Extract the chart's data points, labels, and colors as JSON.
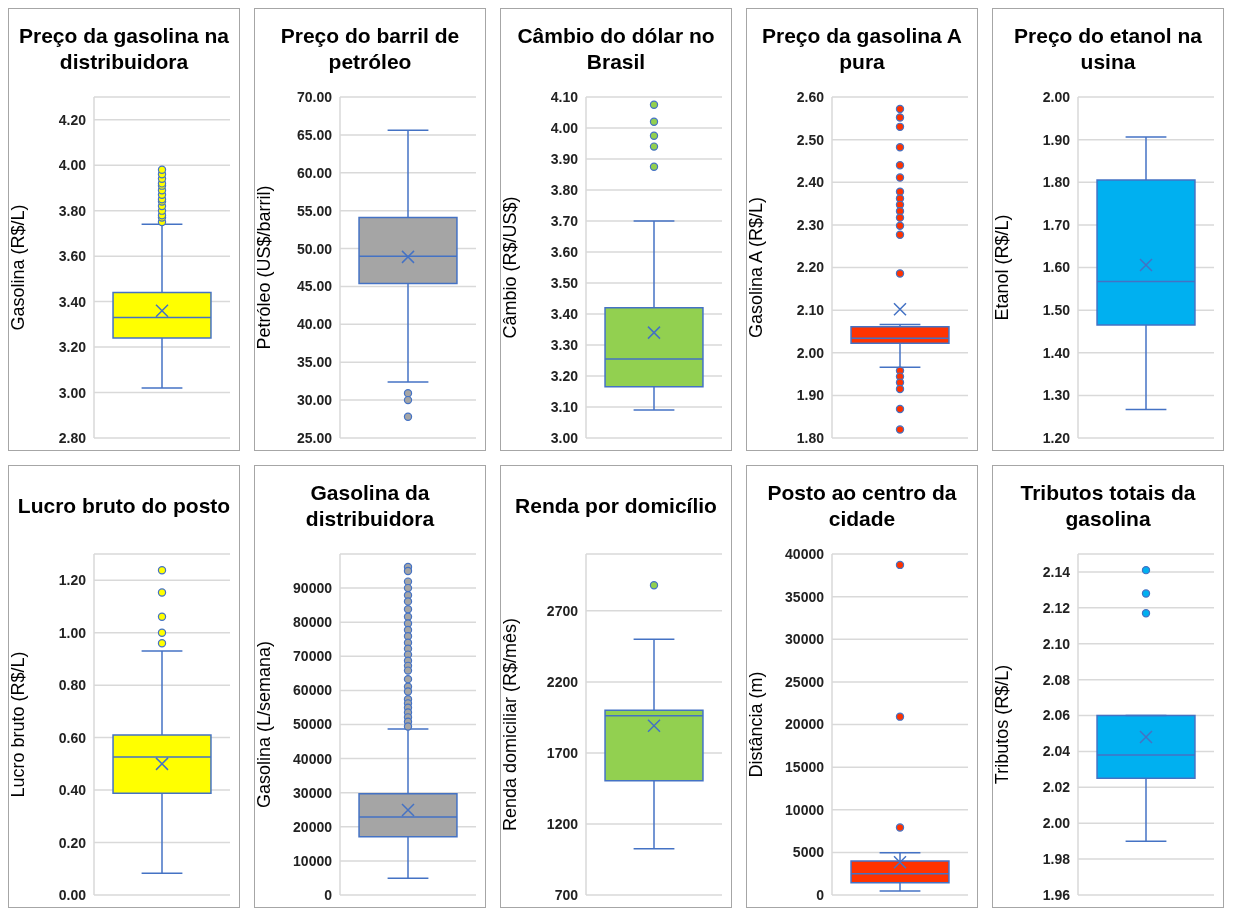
{
  "chart_data": [
    {
      "type": "box",
      "title": "Preço da gasolina na distribuidora",
      "ylabel": "Gasolina (R$/L)",
      "categories": [
        null
      ],
      "grid": "y",
      "ylim": [
        2.8,
        4.3
      ],
      "yticks": [
        {
          "value": 2.8,
          "label": "2.80"
        },
        {
          "value": 3.0,
          "label": "3.00"
        },
        {
          "value": 3.2,
          "label": "3.20"
        },
        {
          "value": 3.4,
          "label": "3.40"
        },
        {
          "value": 3.6,
          "label": "3.60"
        },
        {
          "value": 3.8,
          "label": "3.80"
        },
        {
          "value": 4.0,
          "label": "4.00"
        },
        {
          "value": 4.2,
          "label": "4.20"
        }
      ],
      "series": [
        {
          "color": "#ffff00",
          "boxes": [
            {
              "low": 3.02,
              "q1": 3.24,
              "median": 3.33,
              "q3": 3.44,
              "high": 3.74,
              "mean": 3.36,
              "outliers": [
                3.75,
                3.77,
                3.78,
                3.8,
                3.82,
                3.84,
                3.85,
                3.87,
                3.89,
                3.91,
                3.92,
                3.94,
                3.96,
                3.98
              ]
            }
          ]
        }
      ]
    },
    {
      "type": "box",
      "title": "Preço do barril de petróleo",
      "ylabel": "Petróleo (US$/barril)",
      "categories": [
        null
      ],
      "grid": "y",
      "ylim": [
        25,
        70
      ],
      "yticks": [
        {
          "value": 25,
          "label": "25.00"
        },
        {
          "value": 30,
          "label": "30.00"
        },
        {
          "value": 35,
          "label": "35.00"
        },
        {
          "value": 40,
          "label": "40.00"
        },
        {
          "value": 45,
          "label": "45.00"
        },
        {
          "value": 50,
          "label": "50.00"
        },
        {
          "value": 55,
          "label": "55.00"
        },
        {
          "value": 60,
          "label": "60.00"
        },
        {
          "value": 65,
          "label": "65.00"
        },
        {
          "value": 70,
          "label": "70.00"
        }
      ],
      "series": [
        {
          "color": "#a5a5a5",
          "boxes": [
            {
              "low": 32.4,
              "q1": 45.4,
              "median": 49.0,
              "q3": 54.1,
              "high": 65.6,
              "mean": 48.9,
              "outliers": [
                30.9,
                30.0,
                27.8
              ]
            }
          ]
        }
      ]
    },
    {
      "type": "box",
      "title": "Câmbio do dólar no Brasil",
      "ylabel": "Câmbio (R$/US$)",
      "categories": [
        null
      ],
      "grid": "y",
      "ylim": [
        3.0,
        4.1
      ],
      "yticks": [
        {
          "value": 3.0,
          "label": "3.00"
        },
        {
          "value": 3.1,
          "label": "3.10"
        },
        {
          "value": 3.2,
          "label": "3.20"
        },
        {
          "value": 3.3,
          "label": "3.30"
        },
        {
          "value": 3.4,
          "label": "3.40"
        },
        {
          "value": 3.5,
          "label": "3.50"
        },
        {
          "value": 3.6,
          "label": "3.60"
        },
        {
          "value": 3.7,
          "label": "3.70"
        },
        {
          "value": 3.8,
          "label": "3.80"
        },
        {
          "value": 3.9,
          "label": "3.90"
        },
        {
          "value": 4.0,
          "label": "4.00"
        },
        {
          "value": 4.1,
          "label": "4.10"
        }
      ],
      "series": [
        {
          "color": "#92d050",
          "boxes": [
            {
              "low": 3.09,
              "q1": 3.165,
              "median": 3.255,
              "q3": 3.42,
              "high": 3.7,
              "mean": 3.34,
              "outliers": [
                3.875,
                3.94,
                3.975,
                4.02,
                4.075
              ]
            }
          ]
        }
      ]
    },
    {
      "type": "box",
      "title": "Preço da gasolina A pura",
      "ylabel": "Gasolina A (R$/L)",
      "categories": [
        null
      ],
      "grid": "y",
      "ylim": [
        1.8,
        2.6
      ],
      "yticks": [
        {
          "value": 1.8,
          "label": "1.80"
        },
        {
          "value": 1.9,
          "label": "1.90"
        },
        {
          "value": 2.0,
          "label": "2.00"
        },
        {
          "value": 2.1,
          "label": "2.10"
        },
        {
          "value": 2.2,
          "label": "2.20"
        },
        {
          "value": 2.3,
          "label": "2.30"
        },
        {
          "value": 2.4,
          "label": "2.40"
        },
        {
          "value": 2.5,
          "label": "2.50"
        },
        {
          "value": 2.6,
          "label": "2.60"
        }
      ],
      "series": [
        {
          "color": "#ff3300",
          "boxes": [
            {
              "low": 1.966,
              "q1": 2.022,
              "median": 2.034,
              "q3": 2.061,
              "high": 2.066,
              "mean": 2.102,
              "outliers": [
                2.572,
                2.552,
                2.53,
                2.482,
                2.44,
                2.411,
                2.378,
                2.362,
                2.347,
                2.332,
                2.317,
                2.298,
                2.277,
                2.186,
                1.958,
                1.944,
                1.93,
                1.915,
                1.868,
                1.82
              ]
            }
          ]
        }
      ]
    },
    {
      "type": "box",
      "title": "Preço do etanol na usina",
      "ylabel": "Etanol (R$/L)",
      "categories": [
        null
      ],
      "grid": "y",
      "ylim": [
        1.2,
        2.0
      ],
      "yticks": [
        {
          "value": 1.2,
          "label": "1.20"
        },
        {
          "value": 1.3,
          "label": "1.30"
        },
        {
          "value": 1.4,
          "label": "1.40"
        },
        {
          "value": 1.5,
          "label": "1.50"
        },
        {
          "value": 1.6,
          "label": "1.60"
        },
        {
          "value": 1.7,
          "label": "1.70"
        },
        {
          "value": 1.8,
          "label": "1.80"
        },
        {
          "value": 1.9,
          "label": "1.90"
        },
        {
          "value": 2.0,
          "label": "2.00"
        }
      ],
      "series": [
        {
          "color": "#00b0f0",
          "boxes": [
            {
              "low": 1.267,
              "q1": 1.465,
              "median": 1.567,
              "q3": 1.805,
              "high": 1.906,
              "mean": 1.606
            }
          ]
        }
      ]
    },
    {
      "type": "box",
      "title": "Lucro bruto do posto",
      "ylabel": "Lucro bruto (R$/L)",
      "categories": [
        null
      ],
      "grid": "y",
      "ylim": [
        0,
        1.3
      ],
      "yticks": [
        {
          "value": 0,
          "label": "0.00"
        },
        {
          "value": 0.2,
          "label": "0.20"
        },
        {
          "value": 0.4,
          "label": "0.40"
        },
        {
          "value": 0.6,
          "label": "0.60"
        },
        {
          "value": 0.8,
          "label": "0.80"
        },
        {
          "value": 1.0,
          "label": "1.00"
        },
        {
          "value": 1.2,
          "label": "1.20"
        }
      ],
      "series": [
        {
          "color": "#ffff00",
          "boxes": [
            {
              "low": 0.083,
              "q1": 0.388,
              "median": 0.526,
              "q3": 0.61,
              "high": 0.93,
              "mean": 0.5,
              "outliers": [
                1.238,
                1.153,
                1.061,
                1.0,
                0.96
              ]
            }
          ]
        }
      ]
    },
    {
      "type": "box",
      "title": "Gasolina da distribuidora",
      "ylabel": "Gasolina (L/semana)",
      "categories": [
        null
      ],
      "grid": "y",
      "ylim": [
        0,
        100000
      ],
      "yticks": [
        0,
        10000,
        20000,
        30000,
        40000,
        50000,
        60000,
        70000,
        80000,
        90000
      ],
      "series": [
        {
          "color": "#a5a5a5",
          "boxes": [
            {
              "low": 4900,
              "q1": 17100,
              "median": 22900,
              "q3": 29700,
              "high": 48700,
              "mean": 24900,
              "outliers": [
                96200,
                95000,
                91900,
                90000,
                87900,
                86100,
                83800,
                81600,
                79600,
                77700,
                75900,
                74000,
                72200,
                70500,
                68700,
                67200,
                65800,
                63300,
                61100,
                59700,
                57400,
                56200,
                54900,
                53500,
                52100,
                50800,
                49400
              ]
            }
          ]
        }
      ]
    },
    {
      "type": "box",
      "title": "Renda por domicílio",
      "ylabel": "Renda domiciliar (R$/mês)",
      "categories": [
        null
      ],
      "grid": "y",
      "ylim": [
        700,
        3100
      ],
      "yticks": [
        700,
        1200,
        1700,
        2200,
        2700
      ],
      "series": [
        {
          "color": "#92d050",
          "boxes": [
            {
              "low": 1026,
              "q1": 1504,
              "median": 1961,
              "q3": 2001,
              "high": 2500,
              "mean": 1891,
              "outliers": [
                2880
              ]
            }
          ]
        }
      ]
    },
    {
      "type": "box",
      "title": "Posto ao centro da cidade",
      "ylabel": "Distância (m)",
      "categories": [
        null
      ],
      "grid": "y",
      "ylim": [
        0,
        40000
      ],
      "yticks": [
        0,
        5000,
        10000,
        15000,
        20000,
        25000,
        30000,
        35000,
        40000
      ],
      "series": [
        {
          "color": "#ff3300",
          "boxes": [
            {
              "low": 480,
              "q1": 1440,
              "median": 2480,
              "q3": 4000,
              "high": 4960,
              "mean": 3840,
              "outliers": [
                38720,
                20920,
                7920
              ]
            }
          ]
        }
      ]
    },
    {
      "type": "box",
      "title": "Tributos totais da gasolina",
      "ylabel": "Tributos (R$/L)",
      "categories": [
        null
      ],
      "grid": "y",
      "ylim": [
        1.96,
        2.15
      ],
      "yticks": [
        {
          "value": 1.96,
          "label": "1.96"
        },
        {
          "value": 1.98,
          "label": "1.98"
        },
        {
          "value": 2.0,
          "label": "2.00"
        },
        {
          "value": 2.02,
          "label": "2.02"
        },
        {
          "value": 2.04,
          "label": "2.04"
        },
        {
          "value": 2.06,
          "label": "2.06"
        },
        {
          "value": 2.08,
          "label": "2.08"
        },
        {
          "value": 2.1,
          "label": "2.10"
        },
        {
          "value": 2.12,
          "label": "2.12"
        },
        {
          "value": 2.14,
          "label": "2.14"
        }
      ],
      "series": [
        {
          "color": "#00b0f0",
          "boxes": [
            {
              "low": 1.99,
              "q1": 2.025,
              "median": 2.038,
              "q3": 2.06,
              "high": 2.06,
              "mean": 2.048,
              "outliers": [
                2.141,
                2.128,
                2.117
              ]
            }
          ]
        }
      ]
    }
  ]
}
